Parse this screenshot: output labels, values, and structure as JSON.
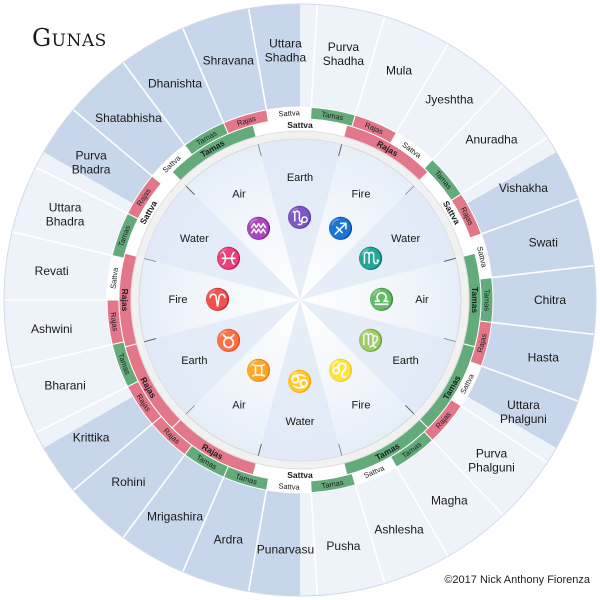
{
  "title": "Gunas",
  "copyright": "©2017 Nick Anthony Fiorenza",
  "colors": {
    "outer_light": "#eef3fa",
    "outer_shade": "#c7d6ea",
    "sattva_band": "#ffffff",
    "rajas_band": "#e2778a",
    "tamas_band": "#64ab7c",
    "ring_gray": "#f1f1f1",
    "glyph_blue": "#2f8fd0",
    "text": "#1a1a1a"
  },
  "nakshatras": [
    {
      "lines": [
        "Chitra"
      ],
      "guna": "Tamas"
    },
    {
      "lines": [
        "Hasta"
      ],
      "guna": "Rajas"
    },
    {
      "lines": [
        "Uttara",
        "Phalguni"
      ],
      "guna": "Sattva"
    },
    {
      "lines": [
        "Purva",
        "Phalguni"
      ],
      "guna": "Rajas"
    },
    {
      "lines": [
        "Magha"
      ],
      "guna": "Tamas"
    },
    {
      "lines": [
        "Ashlesha"
      ],
      "guna": "Sattva"
    },
    {
      "lines": [
        "Pusha"
      ],
      "guna": "Tamas"
    },
    {
      "lines": [
        "Punarvasu"
      ],
      "guna": "Sattva"
    },
    {
      "lines": [
        "Ardra"
      ],
      "guna": "Tamas"
    },
    {
      "lines": [
        "Mrigashira"
      ],
      "guna": "Tamas"
    },
    {
      "lines": [
        "Rohini"
      ],
      "guna": "Rajas"
    },
    {
      "lines": [
        "Krittika"
      ],
      "guna": "Rajas"
    },
    {
      "lines": [
        "Bharani"
      ],
      "guna": "Tamas"
    },
    {
      "lines": [
        "Ashwini"
      ],
      "guna": "Rajas"
    },
    {
      "lines": [
        "Revati"
      ],
      "guna": "Sattva"
    },
    {
      "lines": [
        "Uttara",
        "Bhadra"
      ],
      "guna": "Tamas"
    },
    {
      "lines": [
        "Purva",
        "Bhadra"
      ],
      "guna": "Rajas"
    },
    {
      "lines": [
        "Shatabhisha"
      ],
      "guna": "Sattva"
    },
    {
      "lines": [
        "Dhanishta"
      ],
      "guna": "Tamas"
    },
    {
      "lines": [
        "Shravana"
      ],
      "guna": "Rajas"
    },
    {
      "lines": [
        "Uttara",
        "Shadha"
      ],
      "guna": "Sattva"
    },
    {
      "lines": [
        "Purva",
        "Shadha"
      ],
      "guna": "Tamas"
    },
    {
      "lines": [
        "Mula"
      ],
      "guna": "Rajas"
    },
    {
      "lines": [
        "Jyeshtha"
      ],
      "guna": "Sattva"
    },
    {
      "lines": [
        "Anuradha"
      ],
      "guna": "Tamas"
    },
    {
      "lines": [
        "Vishakha"
      ],
      "guna": "Rajas"
    },
    {
      "lines": [
        "Swati"
      ],
      "guna": "Sattva"
    }
  ],
  "signs": [
    {
      "symbol": "♎",
      "element": "Air",
      "guna": "Tamas"
    },
    {
      "symbol": "♍",
      "element": "Earth",
      "guna": "Tamas"
    },
    {
      "symbol": "♌",
      "element": "Fire",
      "guna": "Tamas"
    },
    {
      "symbol": "♋",
      "element": "Water",
      "guna": "Sattva"
    },
    {
      "symbol": "♊",
      "element": "Air",
      "guna": "Rajas"
    },
    {
      "symbol": "♉",
      "element": "Earth",
      "guna": "Rajas"
    },
    {
      "symbol": "♈",
      "element": "Fire",
      "guna": "Rajas"
    },
    {
      "symbol": "♓",
      "element": "Water",
      "guna": "Sattva"
    },
    {
      "symbol": "♒",
      "element": "Air",
      "guna": "Tamas"
    },
    {
      "symbol": "♑",
      "element": "Earth",
      "guna": "Sattva"
    },
    {
      "symbol": "♐",
      "element": "Fire",
      "guna": "Rajas"
    },
    {
      "symbol": "♏",
      "element": "Water",
      "guna": "Sattva"
    }
  ]
}
